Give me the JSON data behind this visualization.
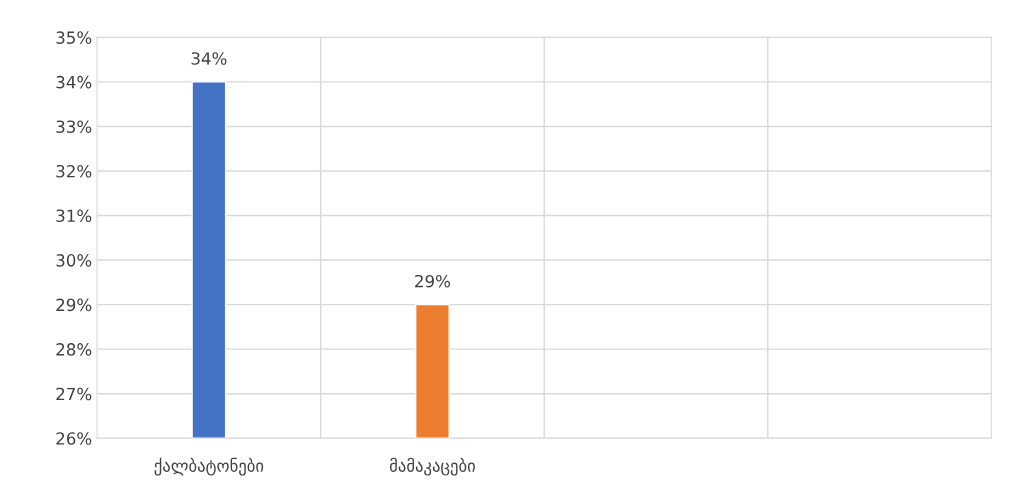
{
  "chart_data": {
    "type": "bar",
    "categories": [
      "ქალბატონები",
      "მამაკაცები",
      null,
      null
    ],
    "values": [
      34,
      29,
      null,
      null
    ],
    "colors": [
      "#4472c4",
      "#ed7d31",
      "#4472c4",
      "#ed7d31"
    ],
    "value_labels": [
      "34%",
      "29%",
      null,
      null
    ],
    "ylim": [
      26,
      35
    ],
    "yticks": [
      {
        "value": 26,
        "label": "26%"
      },
      {
        "value": 27,
        "label": "27%"
      },
      {
        "value": 28,
        "label": "28%"
      },
      {
        "value": 29,
        "label": "29%"
      },
      {
        "value": 30,
        "label": "30%"
      },
      {
        "value": 31,
        "label": "31%"
      },
      {
        "value": 32,
        "label": "32%"
      },
      {
        "value": 33,
        "label": "33%"
      },
      {
        "value": 34,
        "label": "34%"
      },
      {
        "value": 35,
        "label": "35%"
      }
    ],
    "grid": true
  }
}
